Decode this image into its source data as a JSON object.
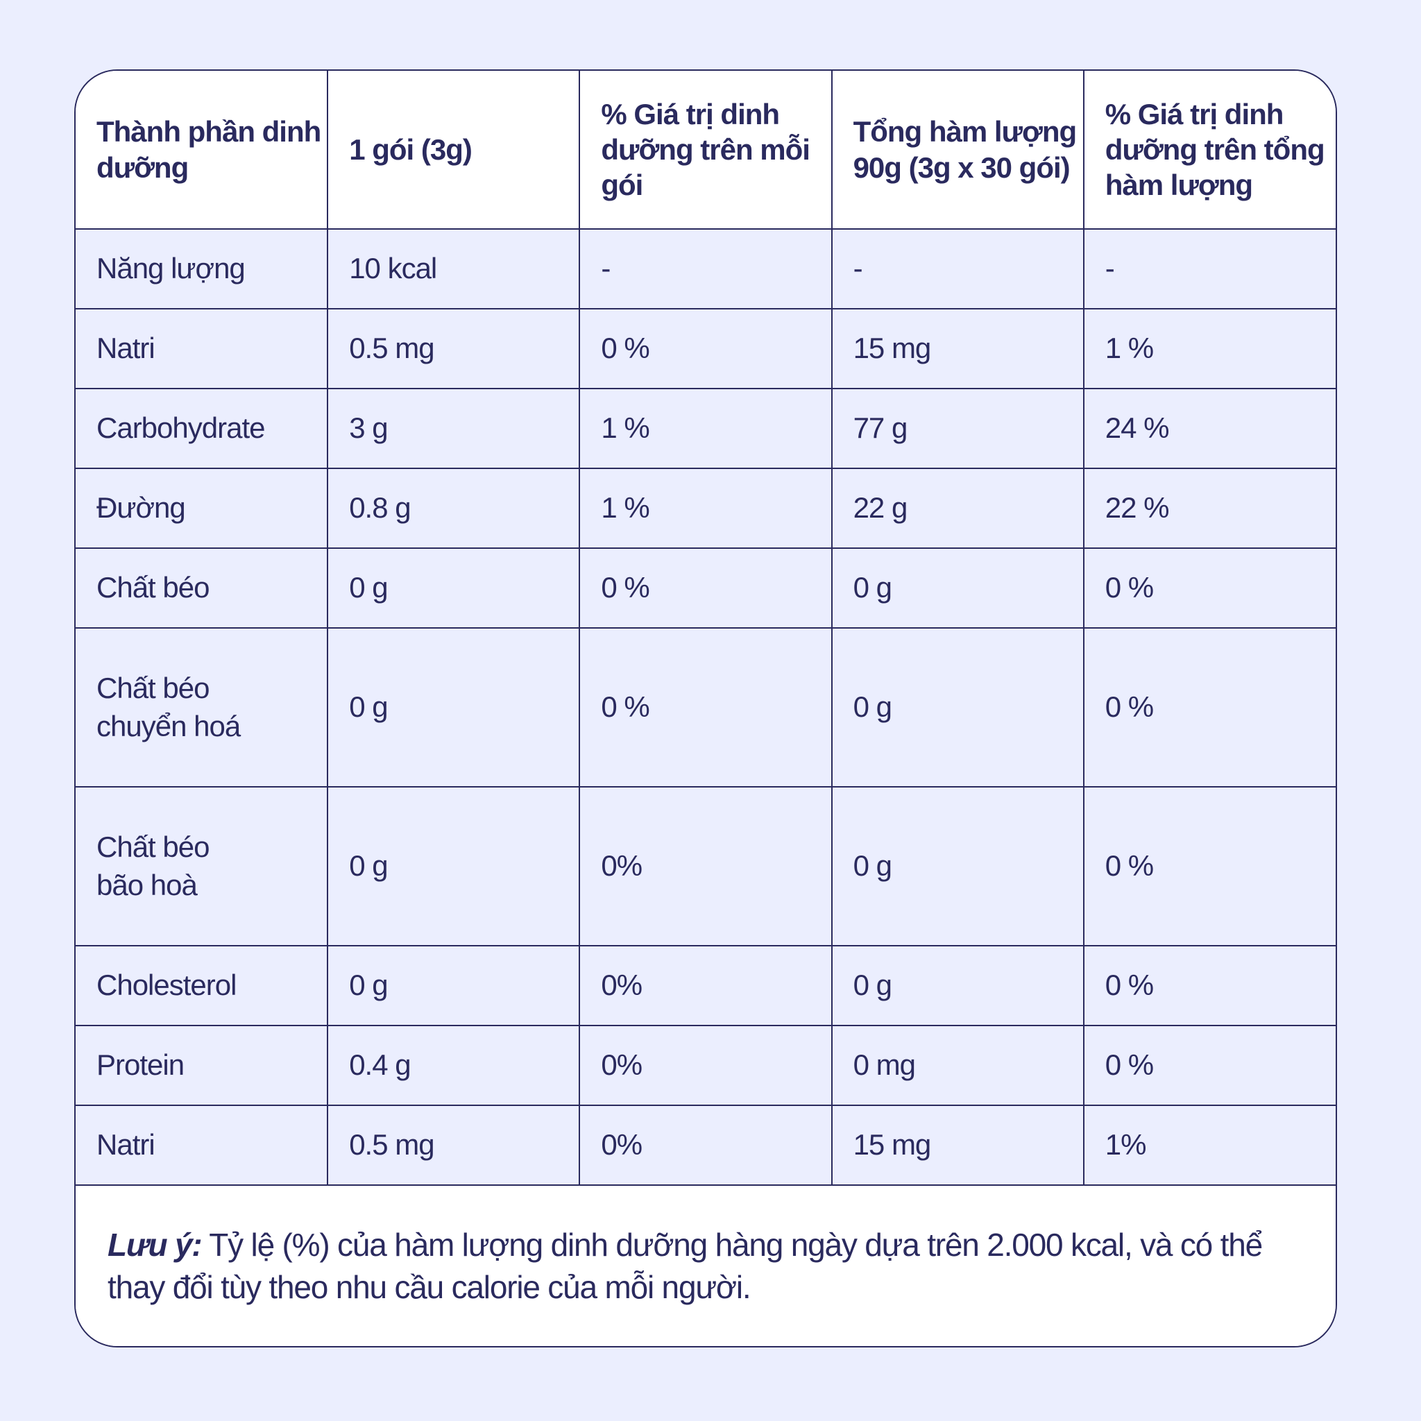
{
  "headers": [
    "Thành phần dinh dưỡng",
    "1 gói (3g)",
    "% Giá trị dinh dưỡng trên mỗi gói",
    "Tổng hàm lượng 90g (3g x 30 gói)",
    "% Giá trị dinh dưỡng trên tổng hàm lượng"
  ],
  "rows": [
    [
      "Năng lượng",
      "10 kcal",
      "-",
      "-",
      "-"
    ],
    [
      "Natri",
      "0.5 mg",
      "0 %",
      "15 mg",
      "1 %"
    ],
    [
      "Carbohydrate",
      "3 g",
      "1 %",
      "77 g",
      "24 %"
    ],
    [
      "Đường",
      "0.8 g",
      "1 %",
      "22 g",
      "22 %"
    ],
    [
      "Chất béo",
      "0 g",
      "0 %",
      "0 g",
      "0 %"
    ],
    [
      "Chất béo chuyển hoá",
      "0 g",
      "0 %",
      "0 g",
      "0 %"
    ],
    [
      "Chất béo bão hoà",
      "0 g",
      "0%",
      "0 g",
      "0 %"
    ],
    [
      "Cholesterol",
      "0 g",
      "0%",
      "0 g",
      "0 %"
    ],
    [
      "Protein",
      "0.4 g",
      "0%",
      "0 mg",
      "0 %"
    ],
    [
      "Natri",
      "0.5 mg",
      "0%",
      "15 mg",
      "1%"
    ]
  ],
  "note": {
    "label": "Lưu ý:",
    "text": " Tỷ lệ (%) của hàm lượng dinh dưỡng hàng ngày dựa trên 2.000 kcal, và có thể thay đổi tùy theo nhu cầu calorie của mỗi người."
  },
  "colors": {
    "background": "#EBEEFE",
    "header_background": "#FFFFFF",
    "ink": "#2A2A5E"
  }
}
